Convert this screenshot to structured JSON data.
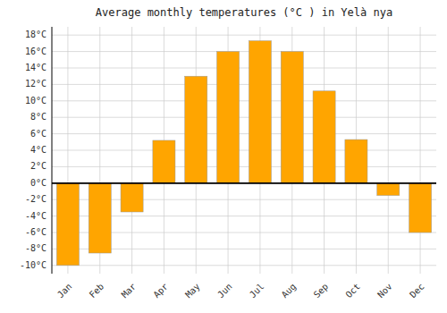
{
  "chart_data": {
    "type": "bar",
    "title": "Average monthly temperatures (°C ) in Yelà nya",
    "categories": [
      "Jan",
      "Feb",
      "Mar",
      "Apr",
      "May",
      "Jun",
      "Jul",
      "Aug",
      "Sep",
      "Oct",
      "Nov",
      "Dec"
    ],
    "values": [
      -10,
      -8.5,
      -3.5,
      5.2,
      13,
      16,
      17.3,
      16,
      11.2,
      5.3,
      -1.5,
      -6
    ],
    "color": "#FFA500",
    "ylim": [
      -11,
      19
    ],
    "yticks": [
      {
        "value": -10,
        "label": "-10°C"
      },
      {
        "value": -8,
        "label": "-8°C"
      },
      {
        "value": -6,
        "label": "-6°C"
      },
      {
        "value": -4,
        "label": "-4°C"
      },
      {
        "value": -2,
        "label": "-2°C"
      },
      {
        "value": 0,
        "label": "0°C"
      },
      {
        "value": 2,
        "label": "2°C"
      },
      {
        "value": 4,
        "label": "4°C"
      },
      {
        "value": 6,
        "label": "6°C"
      },
      {
        "value": 8,
        "label": "8°C"
      },
      {
        "value": 10,
        "label": "10°C"
      },
      {
        "value": 12,
        "label": "12°C"
      },
      {
        "value": 14,
        "label": "14°C"
      },
      {
        "value": 16,
        "label": "16°C"
      },
      {
        "value": 18,
        "label": "18°C"
      }
    ],
    "grid": true
  }
}
